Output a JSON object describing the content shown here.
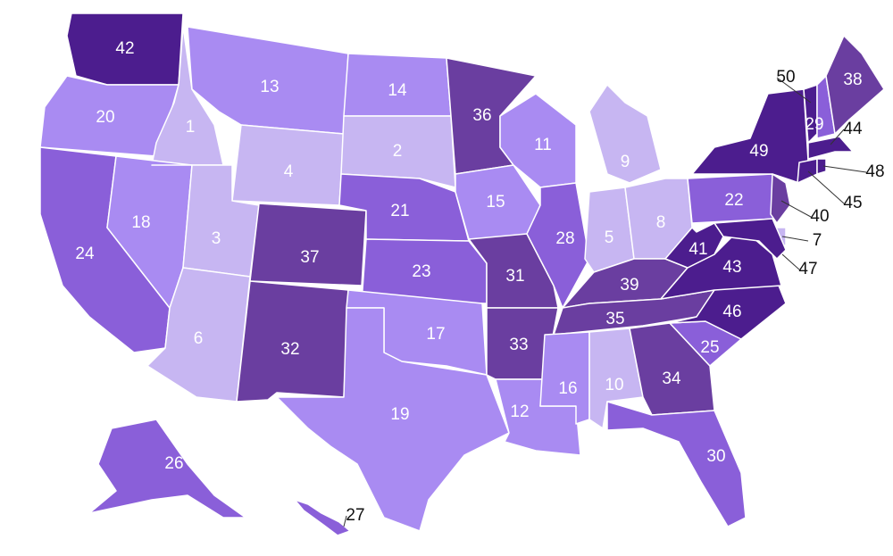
{
  "regions": [
    {
      "label": 42,
      "color": "#4c1d8e"
    },
    {
      "label": 20,
      "color": "#a98bf2"
    },
    {
      "label": 24,
      "color": "#8a5fd9"
    },
    {
      "label": 1,
      "color": "#c7b6f2"
    },
    {
      "label": 18,
      "color": "#a98bf2"
    },
    {
      "label": 13,
      "color": "#a98bf2"
    },
    {
      "label": 4,
      "color": "#c7b6f2"
    },
    {
      "label": 3,
      "color": "#c7b6f2"
    },
    {
      "label": 6,
      "color": "#c7b6f2"
    },
    {
      "label": 37,
      "color": "#6a3ea0"
    },
    {
      "label": 32,
      "color": "#6a3ea0"
    },
    {
      "label": 14,
      "color": "#a98bf2"
    },
    {
      "label": 2,
      "color": "#c7b6f2"
    },
    {
      "label": 21,
      "color": "#8a5fd9"
    },
    {
      "label": 23,
      "color": "#8a5fd9"
    },
    {
      "label": 17,
      "color": "#a98bf2"
    },
    {
      "label": 19,
      "color": "#a98bf2"
    },
    {
      "label": 36,
      "color": "#6a3ea0"
    },
    {
      "label": 15,
      "color": "#a98bf2"
    },
    {
      "label": 31,
      "color": "#6a3ea0"
    },
    {
      "label": 33,
      "color": "#6a3ea0"
    },
    {
      "label": 12,
      "color": "#a98bf2"
    },
    {
      "label": 11,
      "color": "#a98bf2"
    },
    {
      "label": 28,
      "color": "#8a5fd9"
    },
    {
      "label": 9,
      "color": "#c7b6f2"
    },
    {
      "label": 5,
      "color": "#c7b6f2"
    },
    {
      "label": 8,
      "color": "#c7b6f2"
    },
    {
      "label": 39,
      "color": "#6a3ea0"
    },
    {
      "label": 35,
      "color": "#6a3ea0"
    },
    {
      "label": 16,
      "color": "#a98bf2"
    },
    {
      "label": 10,
      "color": "#c7b6f2"
    },
    {
      "label": 34,
      "color": "#6a3ea0"
    },
    {
      "label": 30,
      "color": "#8a5fd9"
    },
    {
      "label": 25,
      "color": "#8a5fd9"
    },
    {
      "label": 46,
      "color": "#4c1d8e"
    },
    {
      "label": 43,
      "color": "#4c1d8e"
    },
    {
      "label": 41,
      "color": "#4c1d8e"
    },
    {
      "label": 22,
      "color": "#8a5fd9"
    },
    {
      "label": 49,
      "color": "#4c1d8e"
    },
    {
      "label": 40,
      "color": "#6a3ea0"
    },
    {
      "label": 7,
      "color": "#c7b6f2"
    },
    {
      "label": 47,
      "color": "#4c1d8e"
    },
    {
      "label": 50,
      "color": "#4c1d8e"
    },
    {
      "label": 29,
      "color": "#8a5fd9"
    },
    {
      "label": 38,
      "color": "#6a3ea0"
    },
    {
      "label": 44,
      "color": "#4c1d8e"
    },
    {
      "label": 45,
      "color": "#4c1d8e"
    },
    {
      "label": 48,
      "color": "#4c1d8e"
    },
    {
      "label": 26,
      "color": "#8a5fd9"
    },
    {
      "label": 27,
      "color": "#8a5fd9"
    }
  ]
}
